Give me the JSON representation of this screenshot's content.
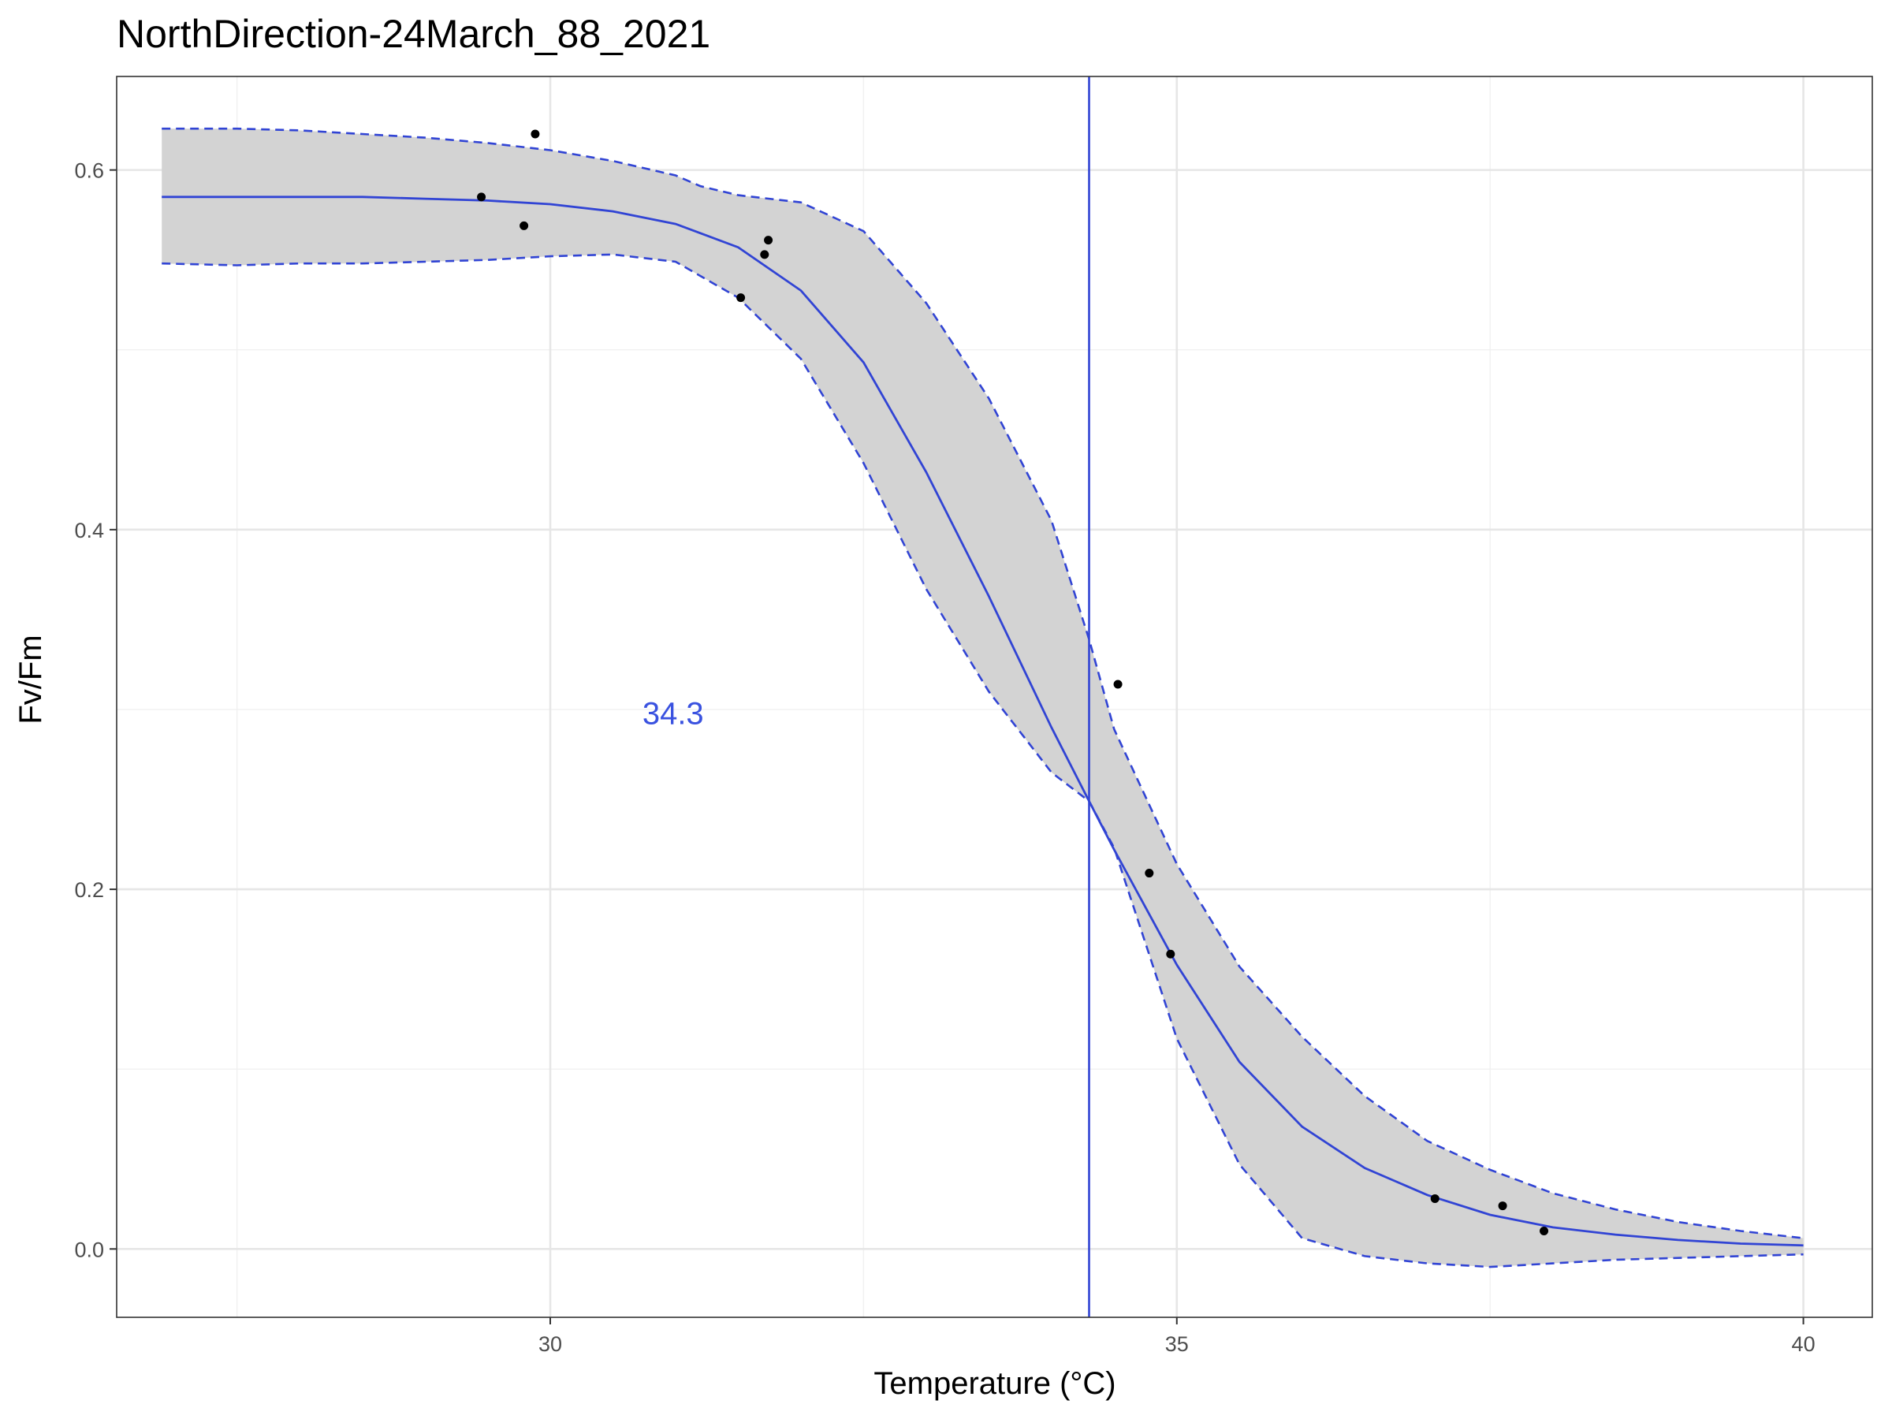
{
  "chart_data": {
    "type": "line",
    "title": "NorthDirection-24March_88_2021",
    "xlabel": "Temperature (°C)",
    "ylabel": "Fv/Fm",
    "xlim": [
      26.54,
      40.55
    ],
    "ylim": [
      -0.038,
      0.652
    ],
    "x_ticks": [
      30,
      35,
      40
    ],
    "x_tick_labels": [
      "30",
      "35",
      "40"
    ],
    "x_minor_ticks": [
      27.5,
      32.5,
      37.5
    ],
    "y_ticks": [
      0.0,
      0.2,
      0.4,
      0.6
    ],
    "y_tick_labels": [
      "0.0",
      "0.2",
      "0.4",
      "0.6"
    ],
    "y_minor_ticks": [
      0.1,
      0.3,
      0.5
    ],
    "grid": true,
    "colors": {
      "fit": "#3144d4",
      "ribbon": "#d3d3d3",
      "points": "#000000",
      "annotation": "#3a52e0",
      "panel_border": "#333333",
      "grid_major": "#e6e6e6",
      "grid_minor": "#f0f0f0"
    },
    "vline_x": 34.3,
    "annotation": {
      "text": "34.3",
      "x": 30.98,
      "y": 0.298
    },
    "points": {
      "x": [
        29.45,
        29.79,
        29.88,
        31.52,
        31.71,
        31.74,
        34.53,
        34.78,
        34.95,
        37.06,
        37.6,
        37.93
      ],
      "y": [
        0.585,
        0.569,
        0.62,
        0.529,
        0.553,
        0.561,
        0.314,
        0.209,
        0.164,
        0.028,
        0.024,
        0.01
      ]
    },
    "fit": {
      "x": [
        26.9,
        27.5,
        28.0,
        28.5,
        29.0,
        29.5,
        30.0,
        30.5,
        31.0,
        31.5,
        32.0,
        32.5,
        33.0,
        33.5,
        34.0,
        34.3,
        34.5,
        35.0,
        35.5,
        36.0,
        36.5,
        37.0,
        37.5,
        38.0,
        38.5,
        39.0,
        39.5,
        40.0
      ],
      "y": [
        0.585,
        0.585,
        0.585,
        0.585,
        0.584,
        0.583,
        0.581,
        0.577,
        0.57,
        0.557,
        0.533,
        0.493,
        0.432,
        0.363,
        0.29,
        0.249,
        0.222,
        0.158,
        0.104,
        0.068,
        0.045,
        0.03,
        0.019,
        0.012,
        0.008,
        0.005,
        0.003,
        0.002
      ]
    },
    "upper_ci": {
      "x": [
        26.9,
        27.5,
        28.0,
        28.5,
        29.0,
        29.5,
        30.0,
        30.5,
        31.0,
        31.2,
        31.5,
        32.0,
        32.5,
        33.0,
        33.5,
        34.0,
        34.3,
        34.5,
        35.0,
        35.5,
        36.0,
        36.5,
        37.0,
        37.5,
        38.0,
        38.5,
        39.0,
        39.5,
        40.0
      ],
      "y": [
        0.623,
        0.623,
        0.622,
        0.62,
        0.618,
        0.615,
        0.611,
        0.605,
        0.597,
        0.591,
        0.586,
        0.582,
        0.566,
        0.526,
        0.473,
        0.405,
        0.339,
        0.289,
        0.214,
        0.157,
        0.118,
        0.085,
        0.06,
        0.044,
        0.031,
        0.022,
        0.015,
        0.01,
        0.006
      ]
    },
    "lower_ci": {
      "x": [
        26.9,
        27.5,
        28.0,
        28.5,
        29.0,
        29.5,
        30.0,
        30.5,
        31.0,
        31.5,
        32.0,
        32.5,
        33.0,
        33.5,
        34.0,
        34.3,
        34.5,
        35.0,
        35.5,
        36.0,
        36.5,
        37.0,
        37.5,
        38.0,
        38.5,
        39.0,
        39.5,
        40.0
      ],
      "y": [
        0.548,
        0.547,
        0.548,
        0.548,
        0.549,
        0.55,
        0.552,
        0.553,
        0.549,
        0.529,
        0.495,
        0.437,
        0.367,
        0.31,
        0.265,
        0.249,
        0.223,
        0.117,
        0.047,
        0.006,
        -0.004,
        -0.008,
        -0.01,
        -0.008,
        -0.006,
        -0.005,
        -0.004,
        -0.003
      ]
    }
  }
}
